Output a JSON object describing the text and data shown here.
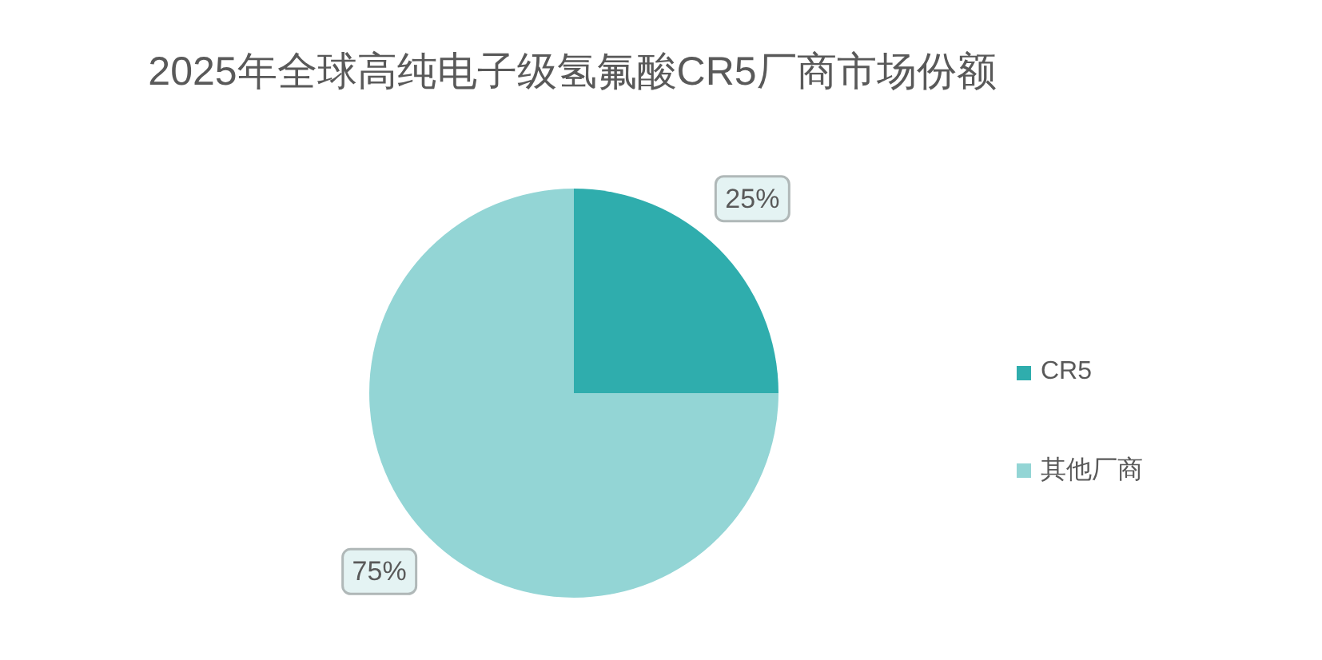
{
  "chart_data": {
    "type": "pie",
    "title": "2025年全球高纯电子级氢氟酸CR5厂商市场份额",
    "categories": [
      "CR5",
      "其他厂商"
    ],
    "values": [
      25,
      75
    ],
    "colors": [
      "#2fadad",
      "#93d5d5"
    ],
    "value_labels": [
      "25%",
      "75%"
    ],
    "legend": "right"
  }
}
